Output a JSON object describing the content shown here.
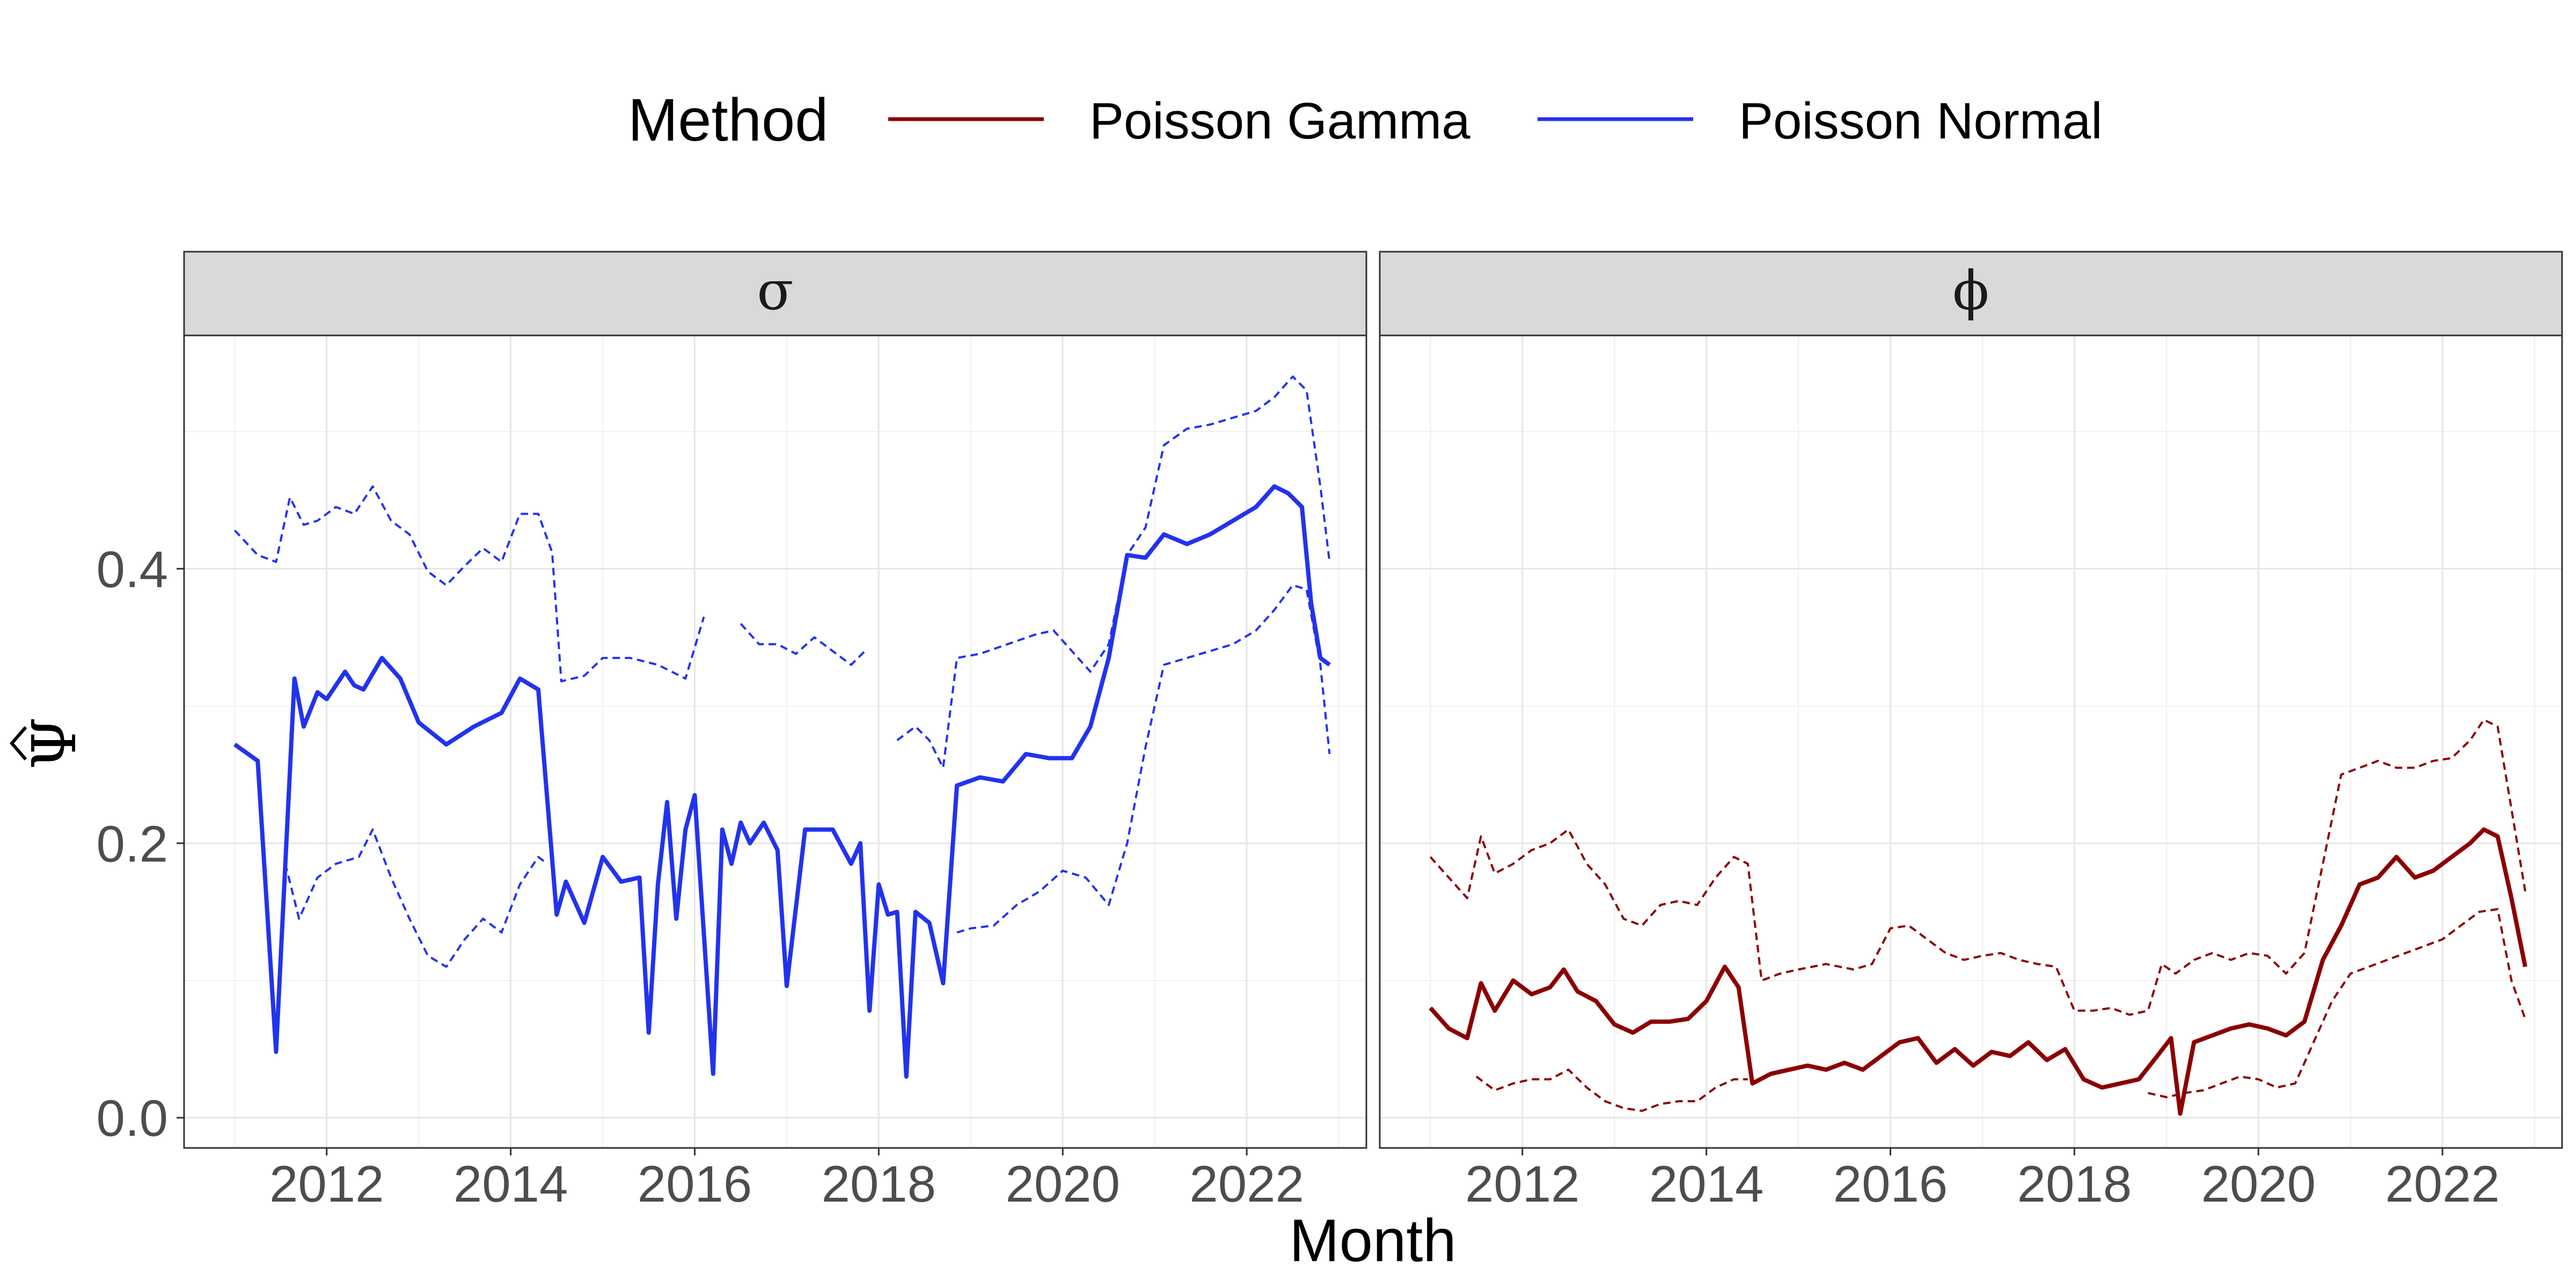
{
  "chart_data": {
    "type": "line",
    "xlabel": "Month",
    "ylabel": "Ψ",
    "legend": {
      "title": "Method",
      "position": "top",
      "entries": [
        {
          "label": "Poisson Gamma",
          "color": "#8B0000"
        },
        {
          "label": "Poisson Normal",
          "color": "#2233EE"
        }
      ]
    },
    "xlim": [
      2010.45,
      2023.3
    ],
    "ylim": [
      -0.022,
      0.57
    ],
    "x_ticks": [
      2012,
      2014,
      2016,
      2018,
      2020,
      2022
    ],
    "x_tick_labels": [
      "2012",
      "2014",
      "2016",
      "2018",
      "2020",
      "2022"
    ],
    "y_ticks": [
      0.0,
      0.2,
      0.4
    ],
    "y_tick_labels": [
      "0.0",
      "0.2",
      "0.4"
    ],
    "grid": true,
    "panels": [
      {
        "strip": "σ",
        "color": "#2233EE",
        "estimate": {
          "x": [
            2011.0,
            2011.25,
            2011.45,
            2011.65,
            2011.75,
            2011.9,
            2012.0,
            2012.2,
            2012.3,
            2012.4,
            2012.6,
            2012.8,
            2013.0,
            2013.3,
            2013.6,
            2013.9,
            2014.1,
            2014.3,
            2014.5,
            2014.6,
            2014.8,
            2015.0,
            2015.2,
            2015.4,
            2015.5,
            2015.6,
            2015.7,
            2015.8,
            2015.9,
            2016.0,
            2016.2,
            2016.3,
            2016.4,
            2016.5,
            2016.6,
            2016.75,
            2016.9,
            2017.0,
            2017.2,
            2017.5,
            2017.7,
            2017.8,
            2017.9,
            2018.0,
            2018.1,
            2018.2,
            2018.3,
            2018.4,
            2018.55,
            2018.7,
            2018.85,
            2019.1,
            2019.35,
            2019.6,
            2019.85,
            2020.1,
            2020.3,
            2020.5,
            2020.7,
            2020.9,
            2021.1,
            2021.35,
            2021.6,
            2021.85,
            2022.1,
            2022.3,
            2022.45,
            2022.6,
            2022.7,
            2022.8,
            2022.9
          ],
          "y": [
            0.272,
            0.26,
            0.048,
            0.32,
            0.285,
            0.31,
            0.305,
            0.325,
            0.315,
            0.312,
            0.335,
            0.32,
            0.288,
            0.272,
            0.285,
            0.295,
            0.32,
            0.312,
            0.148,
            0.172,
            0.142,
            0.19,
            0.172,
            0.175,
            0.062,
            0.17,
            0.23,
            0.145,
            0.21,
            0.235,
            0.032,
            0.21,
            0.185,
            0.215,
            0.2,
            0.215,
            0.195,
            0.096,
            0.21,
            0.21,
            0.185,
            0.2,
            0.078,
            0.17,
            0.148,
            0.15,
            0.03,
            0.15,
            0.142,
            0.098,
            0.242,
            0.248,
            0.245,
            0.265,
            0.262,
            0.262,
            0.285,
            0.335,
            0.41,
            0.408,
            0.425,
            0.418,
            0.425,
            0.435,
            0.445,
            0.46,
            0.455,
            0.445,
            0.375,
            0.335,
            0.33
          ]
        },
        "upper_ci": {
          "x": [
            2011.0,
            2011.25,
            2011.45,
            2011.6,
            2011.75,
            2011.9,
            2012.1,
            2012.3,
            2012.5,
            2012.7,
            2012.9,
            2013.1,
            2013.3,
            2013.5,
            2013.7,
            2013.9,
            2014.1,
            2014.3,
            2014.45,
            2014.55,
            2014.8,
            2015.0,
            2015.3,
            2015.6,
            2015.9,
            2016.1,
            2016.3,
            2016.5,
            2016.7,
            2016.9,
            2017.1,
            2017.3,
            2017.5,
            2017.7,
            2017.85,
            2018.0,
            2018.2,
            2018.4,
            2018.55,
            2018.7,
            2018.85,
            2019.1,
            2019.4,
            2019.7,
            2019.9,
            2020.1,
            2020.3,
            2020.5,
            2020.7,
            2020.9,
            2021.1,
            2021.35,
            2021.6,
            2021.85,
            2022.1,
            2022.3,
            2022.5,
            2022.65,
            2022.8,
            2022.9
          ],
          "y": [
            0.428,
            0.41,
            0.405,
            0.452,
            0.432,
            0.435,
            0.445,
            0.44,
            0.46,
            0.435,
            0.425,
            0.398,
            0.388,
            0.402,
            0.415,
            0.405,
            0.44,
            0.44,
            0.412,
            0.318,
            0.322,
            0.335,
            0.335,
            0.33,
            0.32,
            0.365,
            null,
            0.36,
            0.345,
            0.345,
            0.338,
            0.35,
            0.34,
            0.33,
            0.34,
            null,
            0.275,
            0.285,
            0.275,
            0.255,
            0.335,
            0.338,
            0.345,
            0.352,
            0.355,
            0.34,
            0.325,
            0.345,
            0.41,
            0.43,
            0.49,
            0.502,
            0.505,
            0.51,
            0.515,
            0.525,
            0.54,
            0.53,
            0.46,
            0.405
          ]
        },
        "lower_ci": {
          "x": [
            2011.55,
            2011.7,
            2011.9,
            2012.1,
            2012.35,
            2012.5,
            2012.7,
            2012.9,
            2013.1,
            2013.3,
            2013.5,
            2013.7,
            2013.9,
            2014.1,
            2014.3,
            2014.4,
            2014.55,
            2014.7,
            2015.0,
            2015.3,
            2015.6,
            2015.8,
            2016.0,
            2016.2,
            2016.4,
            2016.5,
            2016.7,
            2016.9,
            2017.1,
            2017.3,
            2017.5,
            2017.7,
            2017.9,
            2018.1,
            2018.3,
            2018.5,
            2018.7,
            2018.85,
            2019.0,
            2019.25,
            2019.5,
            2019.75,
            2020.0,
            2020.25,
            2020.5,
            2020.7,
            2020.9,
            2021.1,
            2021.35,
            2021.6,
            2021.85,
            2022.1,
            2022.3,
            2022.5,
            2022.65,
            2022.8,
            2022.9
          ],
          "y": [
            0.185,
            0.145,
            0.175,
            0.185,
            0.19,
            0.21,
            0.175,
            0.145,
            0.118,
            0.11,
            0.13,
            0.145,
            0.135,
            0.17,
            0.19,
            0.185,
            null,
            null,
            null,
            null,
            null,
            null,
            null,
            null,
            null,
            null,
            null,
            null,
            null,
            null,
            null,
            null,
            null,
            null,
            null,
            null,
            null,
            0.135,
            0.138,
            0.14,
            0.155,
            0.165,
            0.18,
            0.175,
            0.155,
            0.2,
            0.27,
            0.33,
            0.335,
            0.34,
            0.345,
            0.355,
            0.37,
            0.388,
            0.385,
            0.33,
            0.265
          ]
        }
      },
      {
        "strip": "ϕ",
        "color": "#8B0000",
        "estimate": {
          "x": [
            2011.0,
            2011.2,
            2011.4,
            2011.55,
            2011.7,
            2011.9,
            2012.1,
            2012.3,
            2012.45,
            2012.6,
            2012.8,
            2013.0,
            2013.2,
            2013.4,
            2013.6,
            2013.8,
            2014.0,
            2014.2,
            2014.35,
            2014.5,
            2014.7,
            2014.9,
            2015.1,
            2015.3,
            2015.5,
            2015.7,
            2015.9,
            2016.1,
            2016.3,
            2016.5,
            2016.7,
            2016.9,
            2017.1,
            2017.3,
            2017.5,
            2017.7,
            2017.9,
            2018.1,
            2018.3,
            2018.5,
            2018.7,
            2018.9,
            2019.05,
            2019.15,
            2019.3,
            2019.5,
            2019.7,
            2019.9,
            2020.1,
            2020.3,
            2020.5,
            2020.7,
            2020.9,
            2021.1,
            2021.3,
            2021.5,
            2021.7,
            2021.9,
            2022.1,
            2022.3,
            2022.45,
            2022.6,
            2022.75,
            2022.9
          ],
          "y": [
            0.08,
            0.065,
            0.058,
            0.098,
            0.078,
            0.1,
            0.09,
            0.095,
            0.108,
            0.092,
            0.085,
            0.068,
            0.062,
            0.07,
            0.07,
            0.072,
            0.085,
            0.11,
            0.095,
            0.025,
            0.032,
            0.035,
            0.038,
            0.035,
            0.04,
            0.035,
            0.045,
            0.055,
            0.058,
            0.04,
            0.05,
            0.038,
            0.048,
            0.045,
            0.055,
            0.042,
            0.05,
            0.028,
            0.022,
            0.025,
            0.028,
            0.045,
            0.058,
            0.003,
            0.055,
            0.06,
            0.065,
            0.068,
            0.065,
            0.06,
            0.07,
            0.115,
            0.14,
            0.17,
            0.175,
            0.19,
            0.175,
            0.18,
            0.19,
            0.2,
            0.21,
            0.205,
            0.16,
            0.11
          ]
        },
        "upper_ci": {
          "x": [
            2011.0,
            2011.2,
            2011.4,
            2011.55,
            2011.7,
            2011.9,
            2012.1,
            2012.3,
            2012.5,
            2012.7,
            2012.9,
            2013.1,
            2013.3,
            2013.5,
            2013.7,
            2013.9,
            2014.1,
            2014.3,
            2014.45,
            2014.6,
            2014.8,
            2015.0,
            2015.3,
            2015.6,
            2015.8,
            2016.0,
            2016.2,
            2016.4,
            2016.6,
            2016.8,
            2017.0,
            2017.2,
            2017.4,
            2017.6,
            2017.8,
            2018.0,
            2018.2,
            2018.4,
            2018.6,
            2018.8,
            2018.95,
            2019.1,
            2019.3,
            2019.5,
            2019.7,
            2019.9,
            2020.1,
            2020.3,
            2020.5,
            2020.7,
            2020.9,
            2021.1,
            2021.3,
            2021.5,
            2021.7,
            2021.9,
            2022.1,
            2022.3,
            2022.45,
            2022.6,
            2022.75,
            2022.9
          ],
          "y": [
            0.19,
            0.175,
            0.16,
            0.205,
            0.178,
            0.185,
            0.195,
            0.2,
            0.21,
            0.185,
            0.17,
            0.145,
            0.14,
            0.155,
            0.158,
            0.155,
            0.175,
            0.19,
            0.185,
            0.1,
            0.105,
            0.108,
            0.112,
            0.108,
            0.112,
            0.138,
            0.14,
            0.13,
            0.12,
            0.115,
            0.118,
            0.12,
            0.115,
            0.112,
            0.11,
            0.078,
            0.078,
            0.08,
            0.075,
            0.078,
            0.112,
            0.105,
            0.115,
            0.12,
            0.115,
            0.12,
            0.118,
            0.105,
            0.12,
            0.185,
            0.25,
            0.255,
            0.26,
            0.255,
            0.255,
            0.26,
            0.262,
            0.275,
            0.29,
            0.285,
            0.225,
            0.165
          ]
        },
        "lower_ci": {
          "x": [
            2011.5,
            2011.7,
            2011.9,
            2012.1,
            2012.3,
            2012.5,
            2012.7,
            2012.9,
            2013.1,
            2013.3,
            2013.5,
            2013.7,
            2013.9,
            2014.1,
            2014.3,
            2014.45,
            2014.6,
            2014.8,
            2015.0,
            2015.3,
            2015.6,
            2015.8,
            2016.0,
            2016.2,
            2016.4,
            2016.6,
            2016.8,
            2017.0,
            2017.2,
            2017.4,
            2017.6,
            2017.8,
            2018.0,
            2018.2,
            2018.4,
            2018.6,
            2018.8,
            2019.0,
            2019.2,
            2019.4,
            2019.6,
            2019.8,
            2020.0,
            2020.2,
            2020.4,
            2020.6,
            2020.8,
            2021.0,
            2021.2,
            2021.4,
            2021.6,
            2021.8,
            2022.0,
            2022.2,
            2022.4,
            2022.6,
            2022.75,
            2022.9
          ],
          "y": [
            0.03,
            0.02,
            0.025,
            0.028,
            0.028,
            0.035,
            0.022,
            0.012,
            0.007,
            0.005,
            0.01,
            0.012,
            0.012,
            0.022,
            0.028,
            0.028,
            null,
            null,
            null,
            null,
            null,
            null,
            null,
            null,
            null,
            null,
            null,
            null,
            null,
            null,
            null,
            null,
            null,
            null,
            null,
            null,
            0.018,
            0.015,
            0.018,
            0.02,
            0.025,
            0.03,
            0.028,
            0.022,
            0.025,
            0.055,
            0.085,
            0.105,
            0.11,
            0.115,
            0.12,
            0.125,
            0.13,
            0.14,
            0.15,
            0.152,
            0.1,
            0.072
          ]
        }
      }
    ]
  }
}
